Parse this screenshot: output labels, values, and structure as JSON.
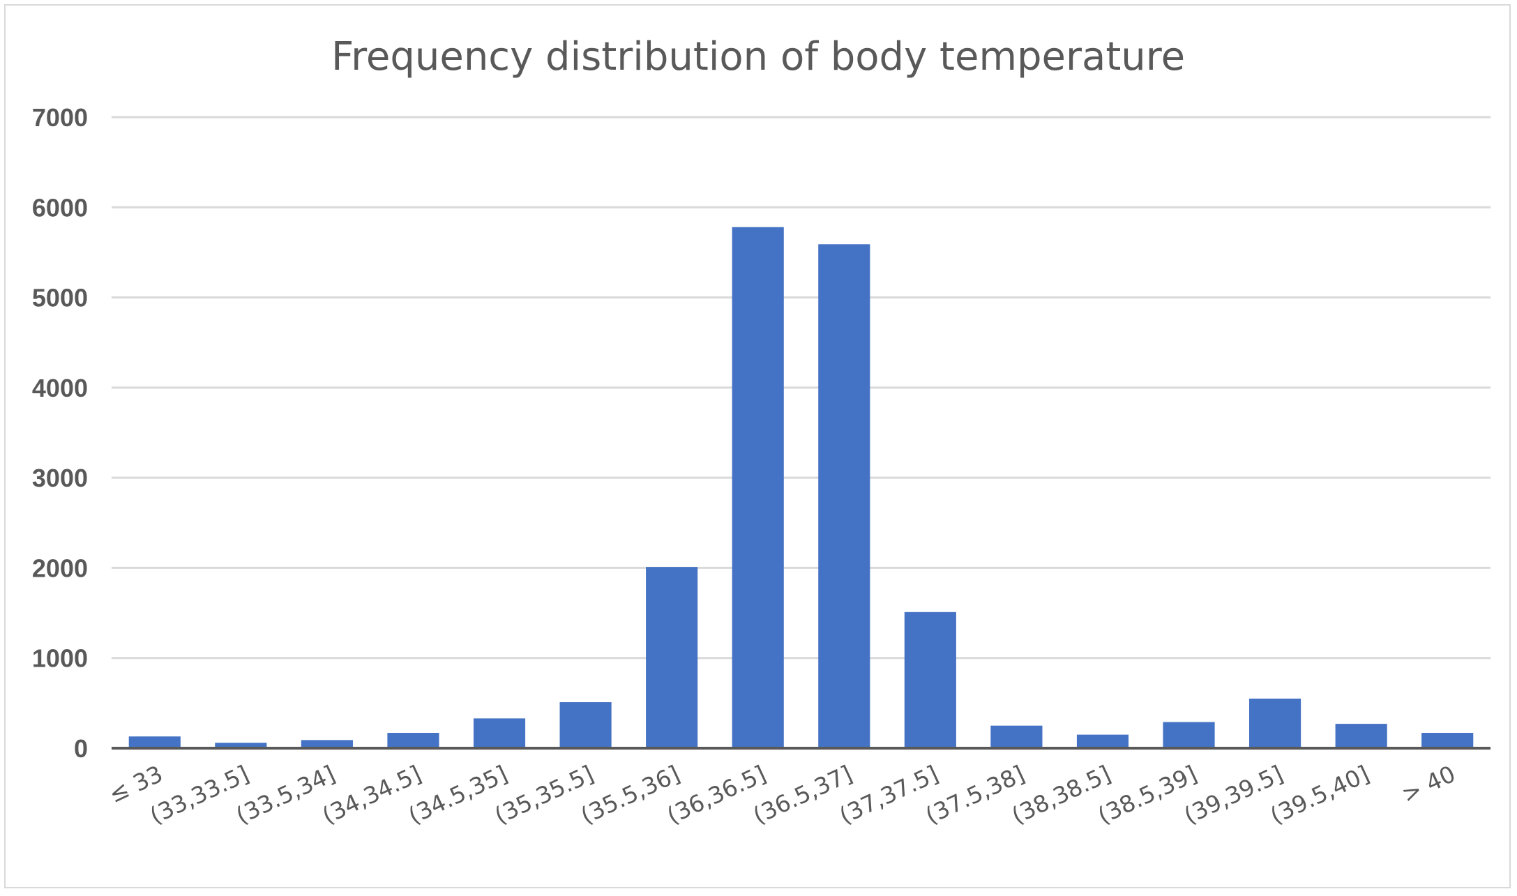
{
  "chart_data": {
    "type": "bar",
    "title": "Frequency distribution of body temperature",
    "xlabel": "",
    "ylabel": "",
    "categories": [
      "≤ 33",
      "(33,33.5]",
      "(33.5,34]",
      "(34,34.5]",
      "(34.5,35]",
      "(35,35.5]",
      "(35.5,36]",
      "(36,36.5]",
      "(36.5,37]",
      "(37,37.5]",
      "(37.5,38]",
      "(38,38.5]",
      "(38.5,39]",
      "(39,39.5]",
      "(39.5,40]",
      "> 40"
    ],
    "values": [
      130,
      60,
      90,
      170,
      330,
      510,
      2010,
      5780,
      5590,
      1510,
      250,
      150,
      290,
      550,
      270,
      170
    ],
    "ylim": [
      0,
      7000
    ],
    "yticks": [
      "0",
      "1000",
      "2000",
      "3000",
      "4000",
      "5000",
      "6000",
      "7000"
    ],
    "grid": true,
    "legend": "none",
    "colors": {
      "bar": "#4472c4",
      "grid": "#d9d9d9",
      "text": "#595959",
      "axis": "#595959"
    }
  }
}
